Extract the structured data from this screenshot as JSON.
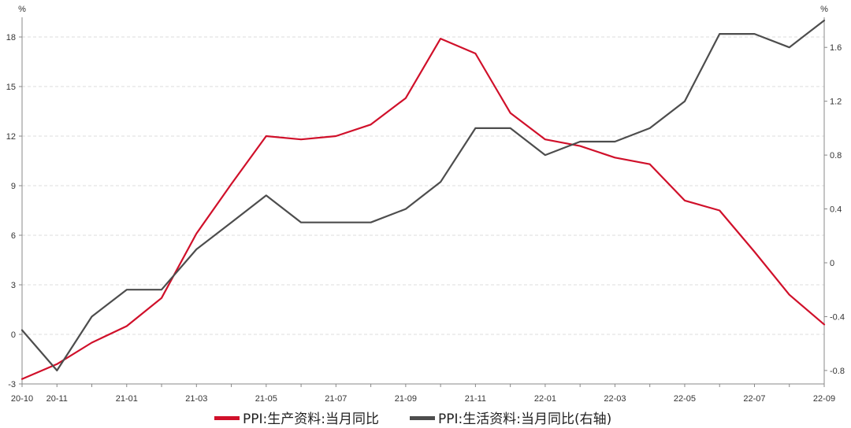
{
  "chart_data": {
    "type": "line",
    "title": "",
    "xlabel": "",
    "ylabel_left": "%",
    "ylabel_right": "%",
    "ylim_left": [
      -3,
      19
    ],
    "ylim_right": [
      -0.9,
      1.8
    ],
    "left_ticks": [
      -3,
      0,
      3,
      6,
      9,
      12,
      15,
      18
    ],
    "right_ticks": [
      -0.8,
      -0.4,
      0,
      0.4,
      0.8,
      1.2,
      1.6
    ],
    "right_tick_labels": [
      "-0.8",
      "-0.4",
      "0",
      "0.4",
      "0.8",
      "1.2",
      "1.6"
    ],
    "x_labels": [
      {
        "i": 0,
        "label": "20-10"
      },
      {
        "i": 1,
        "label": "20-11"
      },
      {
        "i": 3,
        "label": "21-01"
      },
      {
        "i": 5,
        "label": "21-03"
      },
      {
        "i": 7,
        "label": "21-05"
      },
      {
        "i": 9,
        "label": "21-07"
      },
      {
        "i": 11,
        "label": "21-09"
      },
      {
        "i": 13,
        "label": "21-11"
      },
      {
        "i": 15,
        "label": "22-01"
      },
      {
        "i": 17,
        "label": "22-03"
      },
      {
        "i": 19,
        "label": "22-05"
      },
      {
        "i": 21,
        "label": "22-07"
      },
      {
        "i": 23,
        "label": "22-09"
      }
    ],
    "x": [
      "20-10",
      "20-11",
      "20-12",
      "21-01",
      "21-02",
      "21-03",
      "21-04",
      "21-05",
      "21-06",
      "21-07",
      "21-08",
      "21-09",
      "21-10",
      "21-11",
      "21-12",
      "22-01",
      "22-02",
      "22-03",
      "22-04",
      "22-05",
      "22-06",
      "22-07",
      "22-08",
      "22-09"
    ],
    "grid": true,
    "legend_position": "bottom-center",
    "series": [
      {
        "name": "PPI:生产资料:当月同比",
        "axis": "left",
        "color": "#d0102a",
        "values": [
          -2.7,
          -1.8,
          -0.5,
          0.5,
          2.2,
          6.1,
          9.1,
          12.0,
          11.8,
          12.0,
          12.7,
          14.3,
          17.9,
          17.0,
          13.4,
          11.8,
          11.4,
          10.7,
          10.3,
          8.1,
          7.5,
          5.0,
          2.4,
          0.6
        ]
      },
      {
        "name": "PPI:生活资料:当月同比(右轴)",
        "axis": "right",
        "color": "#4d4d4d",
        "values": [
          -0.5,
          -0.8,
          -0.4,
          -0.2,
          -0.2,
          0.1,
          0.3,
          0.5,
          0.3,
          0.3,
          0.3,
          0.4,
          0.6,
          1.0,
          1.0,
          0.8,
          0.9,
          0.9,
          1.0,
          1.2,
          1.7,
          1.7,
          1.6,
          1.8
        ]
      }
    ]
  }
}
